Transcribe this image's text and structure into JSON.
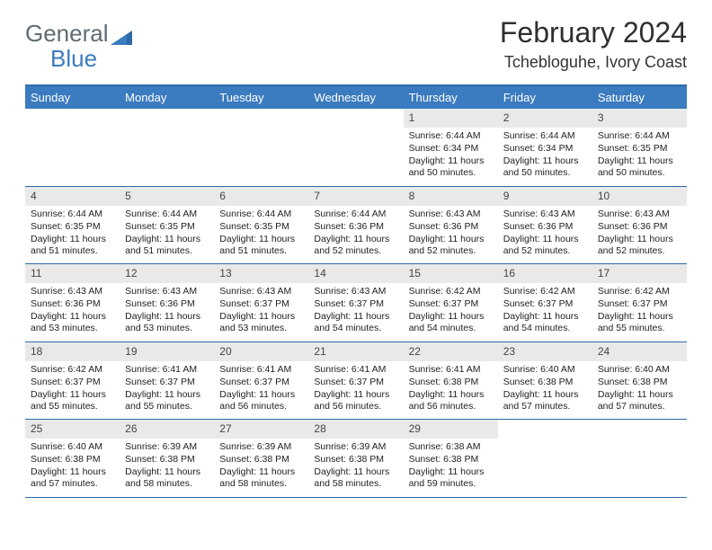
{
  "brand": {
    "part1": "General",
    "part2": "Blue"
  },
  "title": "February 2024",
  "location": "Tchebloguhe, Ivory Coast",
  "colors": {
    "header_bg": "#3b7bbf",
    "header_border": "#2f6aa8",
    "daynum_bg": "#e9e9e9",
    "logo_gray": "#606a72",
    "logo_blue": "#3b7bbf",
    "text": "#222222"
  },
  "dayHeaders": [
    "Sunday",
    "Monday",
    "Tuesday",
    "Wednesday",
    "Thursday",
    "Friday",
    "Saturday"
  ],
  "weeks": [
    [
      null,
      null,
      null,
      null,
      {
        "n": "1",
        "sr": "6:44 AM",
        "ss": "6:34 PM",
        "dl": "11 hours and 50 minutes."
      },
      {
        "n": "2",
        "sr": "6:44 AM",
        "ss": "6:34 PM",
        "dl": "11 hours and 50 minutes."
      },
      {
        "n": "3",
        "sr": "6:44 AM",
        "ss": "6:35 PM",
        "dl": "11 hours and 50 minutes."
      }
    ],
    [
      {
        "n": "4",
        "sr": "6:44 AM",
        "ss": "6:35 PM",
        "dl": "11 hours and 51 minutes."
      },
      {
        "n": "5",
        "sr": "6:44 AM",
        "ss": "6:35 PM",
        "dl": "11 hours and 51 minutes."
      },
      {
        "n": "6",
        "sr": "6:44 AM",
        "ss": "6:35 PM",
        "dl": "11 hours and 51 minutes."
      },
      {
        "n": "7",
        "sr": "6:44 AM",
        "ss": "6:36 PM",
        "dl": "11 hours and 52 minutes."
      },
      {
        "n": "8",
        "sr": "6:43 AM",
        "ss": "6:36 PM",
        "dl": "11 hours and 52 minutes."
      },
      {
        "n": "9",
        "sr": "6:43 AM",
        "ss": "6:36 PM",
        "dl": "11 hours and 52 minutes."
      },
      {
        "n": "10",
        "sr": "6:43 AM",
        "ss": "6:36 PM",
        "dl": "11 hours and 52 minutes."
      }
    ],
    [
      {
        "n": "11",
        "sr": "6:43 AM",
        "ss": "6:36 PM",
        "dl": "11 hours and 53 minutes."
      },
      {
        "n": "12",
        "sr": "6:43 AM",
        "ss": "6:36 PM",
        "dl": "11 hours and 53 minutes."
      },
      {
        "n": "13",
        "sr": "6:43 AM",
        "ss": "6:37 PM",
        "dl": "11 hours and 53 minutes."
      },
      {
        "n": "14",
        "sr": "6:43 AM",
        "ss": "6:37 PM",
        "dl": "11 hours and 54 minutes."
      },
      {
        "n": "15",
        "sr": "6:42 AM",
        "ss": "6:37 PM",
        "dl": "11 hours and 54 minutes."
      },
      {
        "n": "16",
        "sr": "6:42 AM",
        "ss": "6:37 PM",
        "dl": "11 hours and 54 minutes."
      },
      {
        "n": "17",
        "sr": "6:42 AM",
        "ss": "6:37 PM",
        "dl": "11 hours and 55 minutes."
      }
    ],
    [
      {
        "n": "18",
        "sr": "6:42 AM",
        "ss": "6:37 PM",
        "dl": "11 hours and 55 minutes."
      },
      {
        "n": "19",
        "sr": "6:41 AM",
        "ss": "6:37 PM",
        "dl": "11 hours and 55 minutes."
      },
      {
        "n": "20",
        "sr": "6:41 AM",
        "ss": "6:37 PM",
        "dl": "11 hours and 56 minutes."
      },
      {
        "n": "21",
        "sr": "6:41 AM",
        "ss": "6:37 PM",
        "dl": "11 hours and 56 minutes."
      },
      {
        "n": "22",
        "sr": "6:41 AM",
        "ss": "6:38 PM",
        "dl": "11 hours and 56 minutes."
      },
      {
        "n": "23",
        "sr": "6:40 AM",
        "ss": "6:38 PM",
        "dl": "11 hours and 57 minutes."
      },
      {
        "n": "24",
        "sr": "6:40 AM",
        "ss": "6:38 PM",
        "dl": "11 hours and 57 minutes."
      }
    ],
    [
      {
        "n": "25",
        "sr": "6:40 AM",
        "ss": "6:38 PM",
        "dl": "11 hours and 57 minutes."
      },
      {
        "n": "26",
        "sr": "6:39 AM",
        "ss": "6:38 PM",
        "dl": "11 hours and 58 minutes."
      },
      {
        "n": "27",
        "sr": "6:39 AM",
        "ss": "6:38 PM",
        "dl": "11 hours and 58 minutes."
      },
      {
        "n": "28",
        "sr": "6:39 AM",
        "ss": "6:38 PM",
        "dl": "11 hours and 58 minutes."
      },
      {
        "n": "29",
        "sr": "6:38 AM",
        "ss": "6:38 PM",
        "dl": "11 hours and 59 minutes."
      },
      null,
      null
    ]
  ],
  "labels": {
    "sunrise": "Sunrise: ",
    "sunset": "Sunset: ",
    "daylight": "Daylight: "
  }
}
